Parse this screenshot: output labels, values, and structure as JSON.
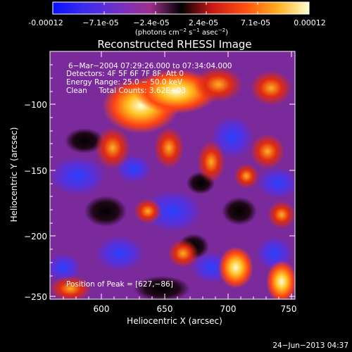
{
  "colorbar": {
    "ticks": [
      "-0.00012",
      "−7.1e-05",
      "−2.4e-05",
      "2.4e-05",
      "7.1e-05",
      "0.00012"
    ],
    "units_prefix": "(photons cm",
    "units_exp1": "−2",
    "units_mid": " s",
    "units_exp2": "−1",
    "units_mid2": " asec",
    "units_exp3": "−2",
    "units_suffix": ")"
  },
  "plot": {
    "title": "Reconstructed RHESSI Image",
    "xlabel": "Heliocentric X (arcsec)",
    "ylabel": "Heliocentric Y (arcsec)",
    "xticks": [
      "600",
      "650",
      "700",
      "750"
    ],
    "yticks": [
      "−100",
      "−150",
      "−200",
      "−250"
    ],
    "xlim": [
      563,
      755
    ],
    "ylim": [
      -252,
      -65
    ]
  },
  "annotations": {
    "line1": "6−Mar−2004 07:29:26.000 to 07:34:04.000",
    "line2": "Detectors: 4F 5F 6F 7F 8F, Att 0",
    "line3": "Energy Range: 25.0 − 50.0 keV",
    "line4": "Clean     Total Counts: 3.62E+03",
    "peak": "Position of Peak = [627,−86]"
  },
  "footer": {
    "date": "24−Jun−2013 04:37"
  }
}
